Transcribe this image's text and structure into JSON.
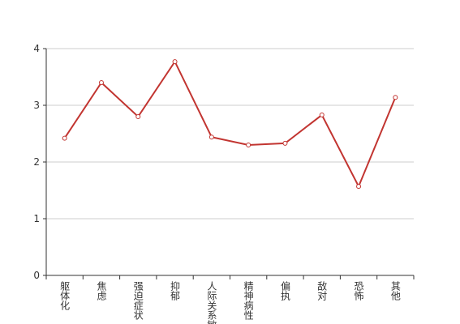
{
  "chart_data": {
    "type": "line",
    "categories": [
      "躯体化",
      "焦虑",
      "强迫症状",
      "抑郁",
      "人际关系敏感",
      "精神病性",
      "偏执",
      "敌对",
      "恐怖",
      "其他"
    ],
    "values": [
      2.42,
      3.4,
      2.8,
      3.77,
      2.44,
      2.3,
      2.33,
      2.83,
      1.57,
      3.14
    ],
    "color": "#c23531",
    "ylim": [
      0,
      4
    ],
    "yticks": [
      0,
      1,
      2,
      3,
      4
    ],
    "grid": true
  }
}
